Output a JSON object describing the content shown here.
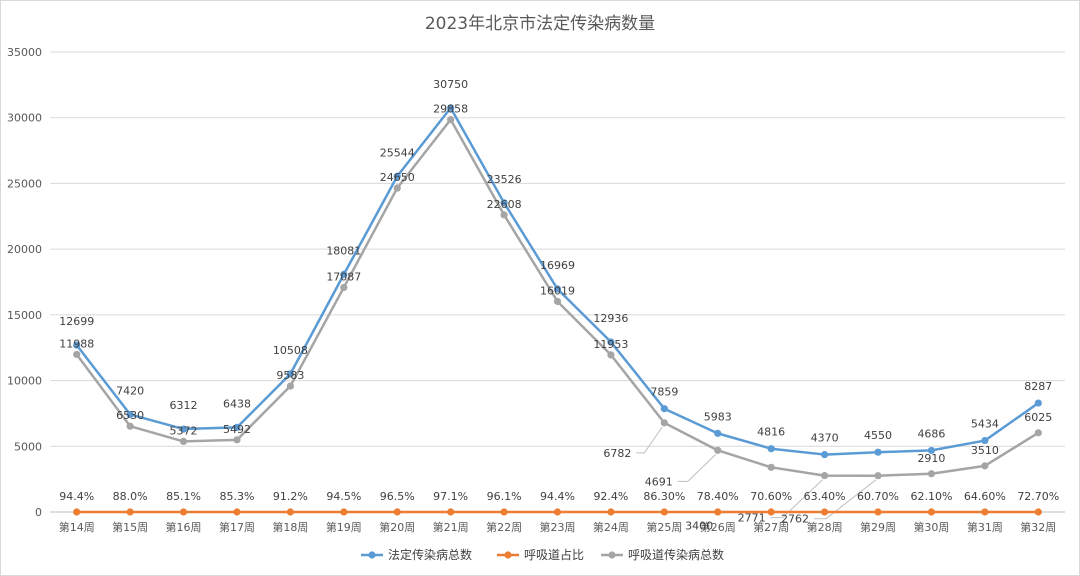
{
  "chart_data": {
    "type": "line",
    "title": "2023年北京市法定传染病数量",
    "xlabel": "",
    "ylabel": "",
    "ylim": [
      0,
      35000
    ],
    "yticks": [
      "0",
      "5000",
      "10000",
      "15000",
      "20000",
      "25000",
      "30000",
      "35000"
    ],
    "grid": true,
    "legend_position": "bottom",
    "categories": [
      "第14周",
      "第15周",
      "第16周",
      "第17周",
      "第18周",
      "第19周",
      "第20周",
      "第21周",
      "第22周",
      "第23周",
      "第24周",
      "第25周",
      "第26周",
      "第27周",
      "第28周",
      "第29周",
      "第30周",
      "第31周",
      "第32周"
    ],
    "series": [
      {
        "name": "法定传染病总数",
        "color": "#5B9BD5",
        "values": [
          12699,
          7420,
          6312,
          6438,
          10508,
          18081,
          25544,
          30750,
          23526,
          16969,
          12936,
          7859,
          5983,
          4816,
          4370,
          4550,
          4686,
          5434,
          8287
        ],
        "labels": [
          "12699",
          "7420",
          "6312",
          "6438",
          "10508",
          "18081",
          "25544",
          "30750",
          "23526",
          "16969",
          "12936",
          "7859",
          "5983",
          "4816",
          "4370",
          "4550",
          "4686",
          "5434",
          "8287"
        ]
      },
      {
        "name": "呼吸道占比",
        "color": "#ED7D31",
        "values": [
          94.4,
          88.0,
          85.1,
          85.3,
          91.2,
          94.5,
          96.5,
          97.1,
          96.1,
          94.4,
          92.4,
          86.3,
          78.4,
          70.6,
          63.4,
          60.7,
          62.1,
          64.6,
          72.7
        ],
        "labels": [
          "94.4%",
          "88.0%",
          "85.1%",
          "85.3%",
          "91.2%",
          "94.5%",
          "96.5%",
          "97.1%",
          "96.1%",
          "94.4%",
          "92.4%",
          "86.30%",
          "78.40%",
          "70.60%",
          "63.40%",
          "60.70%",
          "62.10%",
          "64.60%",
          "72.70%"
        ]
      },
      {
        "name": "呼吸道传染病总数",
        "color": "#A5A5A5",
        "values": [
          11988,
          6530,
          5372,
          5492,
          9583,
          17087,
          24650,
          29858,
          22608,
          16019,
          11953,
          6782,
          4691,
          3400,
          2771,
          2762,
          2910,
          3510,
          6025
        ],
        "labels": [
          "11988",
          "6530",
          "5372",
          "5492",
          "9583",
          "17087",
          "24650",
          "29858",
          "22608",
          "16019",
          "11953",
          "6782",
          "4691",
          "3400",
          "2771",
          "2762",
          "2910",
          "3510",
          "6025"
        ]
      }
    ]
  }
}
